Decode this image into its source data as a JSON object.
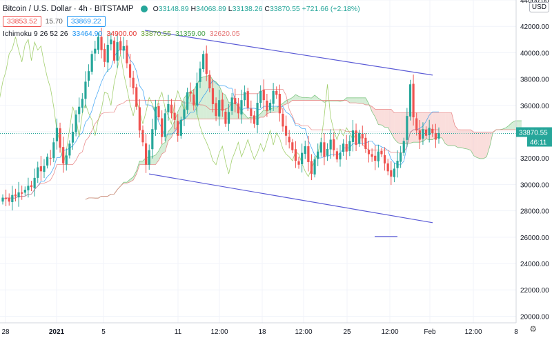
{
  "header": {
    "symbol": "Bitcoin / U.S. Dollar · 4h · BITSTAMP",
    "o_label": "O",
    "o": "33148.89",
    "h_label": "H",
    "h": "34068.89",
    "l_label": "L",
    "l": "33138.26",
    "c_label": "C",
    "c": "33870.55",
    "change": "+721.66 (+2.18%)",
    "bid": "33853.52",
    "spread": "15.70",
    "ask": "33869.22"
  },
  "indicator": {
    "name": "Ichimoku 9 26 52 26",
    "v1": "33464.90",
    "v2": "34900.00",
    "v3": "33870.55",
    "v4": "31359.00",
    "v5": "32620.05"
  },
  "currency_button": "USD",
  "price_tag": "33870.55",
  "countdown_tag": "46:11",
  "colors": {
    "up": "#26a69a",
    "down": "#ef5350",
    "trendline": "#5b5bd6",
    "cloud_bull": "#a5d6a7",
    "cloud_bear": "#f5b5b2",
    "conversion": "#2196f3",
    "base": "#e57373",
    "lagging": "#8bc34a"
  },
  "chart_data": {
    "type": "candlestick",
    "title": "Bitcoin / U.S. Dollar · 4h · BITSTAMP",
    "ylim": [
      19500,
      44000
    ],
    "y_ticks": [
      "20000.00",
      "22000.00",
      "24000.00",
      "26000.00",
      "28000.00",
      "30000.00",
      "32000.00",
      "34000.00",
      "36000.00",
      "38000.00",
      "40000.00",
      "42000.00",
      "44000.00"
    ],
    "x_tick_labels": [
      "28",
      "2021",
      "5",
      "11",
      "12:00",
      "18",
      "12:00",
      "25",
      "12:00",
      "Feb",
      "12:00",
      "8"
    ],
    "price_line": 33870.55,
    "candle_path": [
      29000,
      28900,
      28700,
      29200,
      29100,
      29400,
      29300,
      29600,
      29900,
      29800,
      30500,
      31300,
      31000,
      31400,
      32100,
      32000,
      33200,
      34300,
      32800,
      31600,
      32200,
      33100,
      34000,
      35300,
      35900,
      36500,
      37800,
      38600,
      39900,
      40300,
      41200,
      40200,
      39300,
      40600,
      41000,
      39400,
      40800,
      40200,
      40500,
      39200,
      38100,
      37300,
      35900,
      34100,
      33200,
      31500,
      32600,
      34200,
      35900,
      35100,
      33600,
      35400,
      36100,
      35400,
      34900,
      33700,
      34900,
      35700,
      37000,
      36900,
      36000,
      37700,
      38800,
      39900,
      38400,
      37300,
      36100,
      35200,
      36400,
      35600,
      34600,
      35500,
      36600,
      36100,
      35400,
      36400,
      37000,
      35800,
      35200,
      34600,
      36200,
      37100,
      36400,
      35600,
      36200,
      37100,
      36800,
      35400,
      34400,
      33700,
      33200,
      32600,
      31800,
      31500,
      32400,
      32900,
      31700,
      30800,
      31900,
      32500,
      33200,
      32100,
      32700,
      33400,
      32600,
      31900,
      32400,
      33100,
      32500,
      33300,
      34100,
      33000,
      33900,
      33500,
      32700,
      32300,
      32100,
      31800,
      32500,
      32300,
      31600,
      31000,
      30600,
      31200,
      31800,
      32400,
      33300,
      35200,
      37600,
      35100,
      34100,
      33400,
      34200,
      33700,
      34300,
      33900,
      33400,
      33900
    ],
    "trendlines": [
      {
        "from": {
          "x": "Jan 8",
          "y": 41700
        },
        "to": {
          "x": "Feb 1",
          "y": 38300
        }
      },
      {
        "from": {
          "x": "Jan 9",
          "y": 30800
        },
        "to": {
          "x": "Feb 1",
          "y": 27100
        }
      }
    ],
    "horizontal_segment": {
      "y": 26050
    }
  }
}
